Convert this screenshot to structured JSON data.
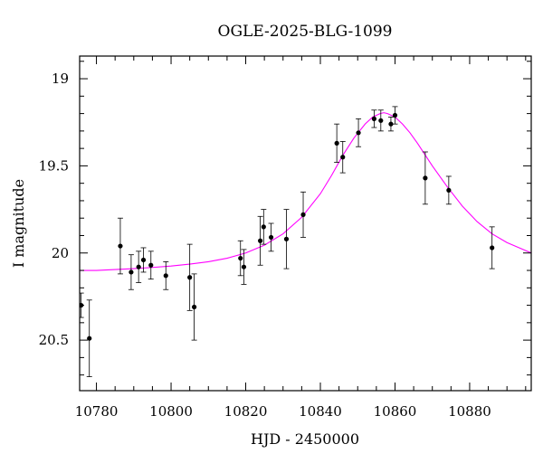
{
  "chart_data": {
    "type": "scatter",
    "title": "OGLE-2025-BLG-1099",
    "xlabel": "HJD - 2450000",
    "ylabel": "I magnitude",
    "xlim": [
      10775.5,
      10896.5
    ],
    "ylim": [
      20.79,
      18.87
    ],
    "y_inverted": true,
    "x_ticks": [
      10780,
      10800,
      10820,
      10840,
      10860,
      10880
    ],
    "x_tick_labels": [
      "10780",
      "10800",
      "10820",
      "10840",
      "10860",
      "10880"
    ],
    "y_ticks": [
      19.0,
      19.5,
      20.0,
      20.5
    ],
    "y_tick_labels": [
      "19",
      "19.5",
      "20",
      "20.5"
    ],
    "grid": false,
    "colors": {
      "points": "#000000",
      "model": "#ff00ff",
      "frame": "#000000"
    },
    "series": [
      {
        "kind": "points_with_errorbars",
        "x": [
          10775.9,
          10778.1,
          10786.4,
          10789.3,
          10791.3,
          10792.6,
          10794.6,
          10798.6,
          10805.0,
          10806.2,
          10818.6,
          10819.5,
          10823.9,
          10824.8,
          10826.8,
          10830.9,
          10835.4,
          10844.4,
          10846.0,
          10850.2,
          10854.4,
          10856.2,
          10858.9,
          10860.0,
          10868.1,
          10874.4,
          10886.0
        ],
        "y": [
          20.3,
          20.49,
          19.96,
          20.11,
          20.08,
          20.04,
          20.07,
          20.13,
          20.14,
          20.31,
          20.03,
          20.08,
          19.93,
          19.85,
          19.91,
          19.92,
          19.78,
          19.37,
          19.45,
          19.31,
          19.23,
          19.24,
          19.26,
          19.21,
          19.57,
          19.64,
          19.97
        ],
        "err": [
          0.07,
          0.22,
          0.16,
          0.1,
          0.09,
          0.07,
          0.08,
          0.08,
          0.19,
          0.19,
          0.1,
          0.1,
          0.14,
          0.1,
          0.08,
          0.17,
          0.13,
          0.11,
          0.09,
          0.08,
          0.05,
          0.06,
          0.04,
          0.05,
          0.15,
          0.08,
          0.12
        ]
      },
      {
        "kind": "model_curve",
        "x": [
          10775.5,
          10780,
          10785,
          10790,
          10795,
          10800,
          10805,
          10810,
          10815,
          10820,
          10825,
          10830,
          10835,
          10840,
          10843,
          10846,
          10849,
          10852,
          10854,
          10856,
          10857,
          10858,
          10860,
          10862,
          10864,
          10866,
          10870,
          10874,
          10878,
          10882,
          10886,
          10890,
          10896.5
        ],
        "y": [
          20.1,
          20.1,
          20.095,
          20.09,
          20.083,
          20.075,
          20.064,
          20.05,
          20.03,
          20.0,
          19.955,
          19.89,
          19.795,
          19.66,
          19.555,
          19.44,
          19.34,
          19.26,
          19.22,
          19.2,
          19.195,
          19.2,
          19.22,
          19.26,
          19.31,
          19.37,
          19.5,
          19.62,
          19.73,
          19.82,
          19.89,
          19.94,
          20.0
        ]
      }
    ]
  }
}
